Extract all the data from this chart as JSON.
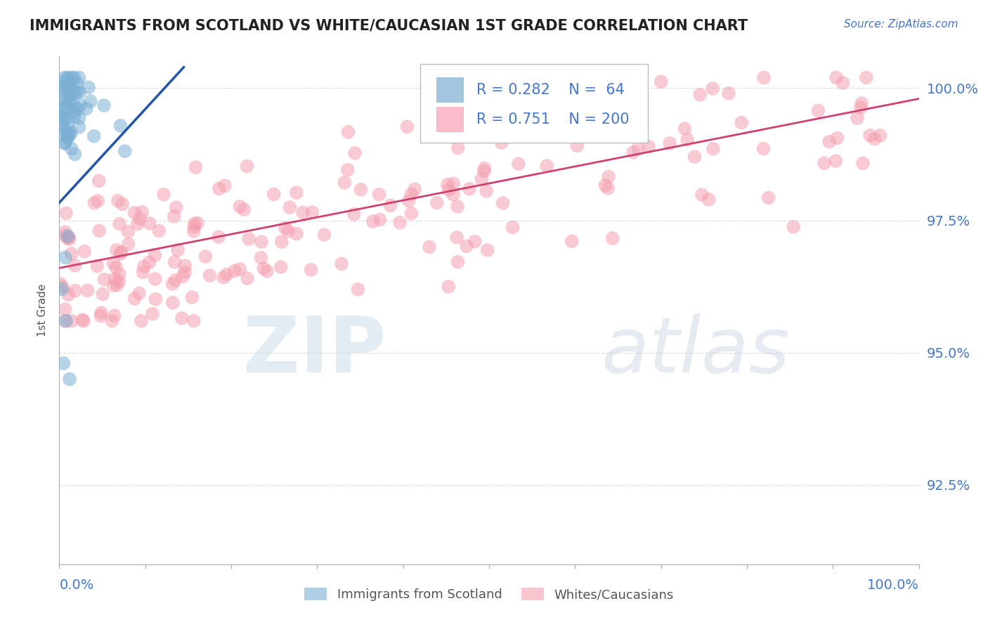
{
  "title": "IMMIGRANTS FROM SCOTLAND VS WHITE/CAUCASIAN 1ST GRADE CORRELATION CHART",
  "source": "Source: ZipAtlas.com",
  "ylabel_label": "1st Grade",
  "y_tick_labels": [
    "92.5%",
    "95.0%",
    "97.5%",
    "100.0%"
  ],
  "y_tick_values": [
    0.925,
    0.95,
    0.975,
    1.0
  ],
  "x_range": [
    0.0,
    1.0
  ],
  "y_range": [
    0.91,
    1.006
  ],
  "R_blue": 0.282,
  "N_blue": 64,
  "R_pink": 0.751,
  "N_pink": 200,
  "blue_color": "#7BAFD4",
  "pink_color": "#F4A0B0",
  "trend_blue_color": "#2255AA",
  "trend_pink_color": "#D04070",
  "legend_label_blue": "Immigrants from Scotland",
  "legend_label_pink": "Whites/Caucasians",
  "background_color": "#FFFFFF",
  "grid_color": "#CCCCCC",
  "axis_color": "#AAAAAA",
  "title_color": "#222222",
  "tick_label_color": "#4477CC",
  "source_color": "#4477CC"
}
